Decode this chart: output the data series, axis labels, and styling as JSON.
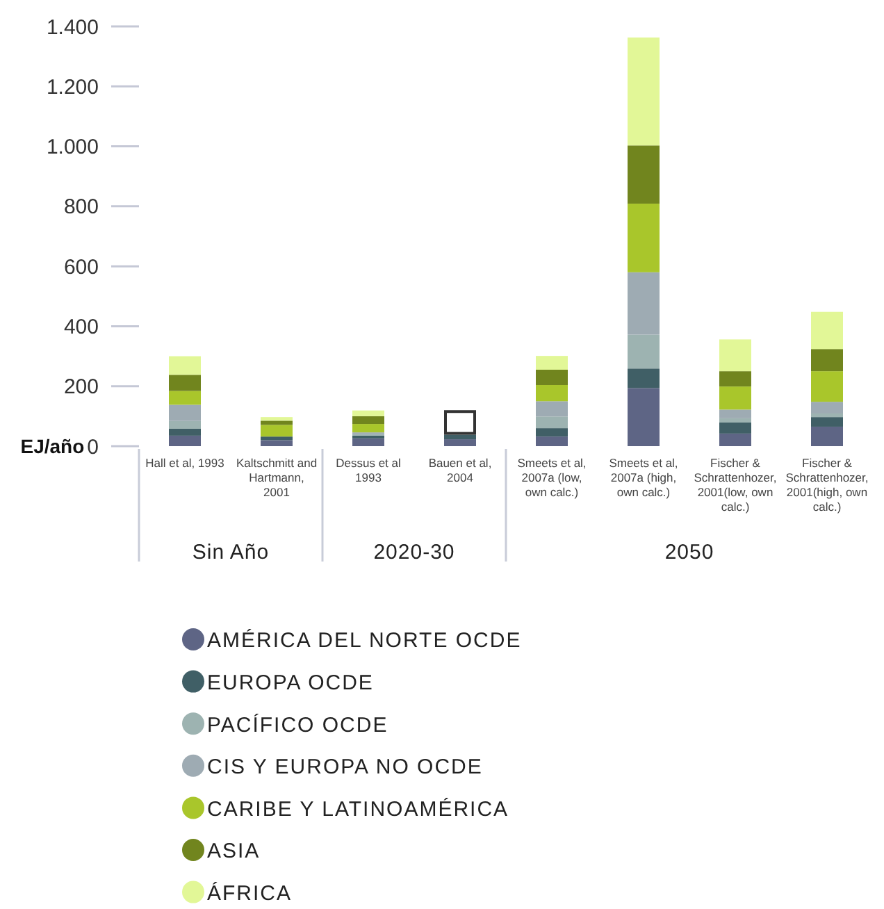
{
  "chart_data": {
    "type": "bar",
    "stacked": true,
    "ylabel": "EJ/año",
    "categories": [
      "Hall et al, 1993",
      "Kaltschmitt and Hartmann, 2001",
      "Dessus et al 1993",
      "Bauen et al, 2004",
      "Smeets et al, 2007a (low, own calc.)",
      "Smeets et al, 2007a (high, own calc.)",
      "Fischer & Schrattenhozer, 2001(low, own calc.)",
      "Fischer & Schrattenhozer, 2001(high, own calc.)"
    ],
    "series": [
      {
        "name": "AMÉRICA DEL NORTE OCDE",
        "color": "#5e6585",
        "values": [
          35,
          20,
          26,
          23,
          32,
          194,
          42,
          65
        ]
      },
      {
        "name": "EUROPA OCDE",
        "color": "#405f66",
        "values": [
          23,
          12,
          9,
          15,
          28,
          65,
          37,
          32
        ]
      },
      {
        "name": "PACÍFICO OCDE",
        "color": "#9db3b1",
        "values": [
          26,
          0,
          5,
          0,
          39,
          113,
          14,
          12
        ]
      },
      {
        "name": "CIS Y EUROPA NO OCDE",
        "color": "#9eabb3",
        "values": [
          54,
          0,
          6,
          0,
          51,
          208,
          29,
          39
        ]
      },
      {
        "name": "CARIBE Y LATINOAMÉRICA",
        "color": "#a9c62b",
        "values": [
          46,
          39,
          28,
          0,
          54,
          229,
          77,
          102
        ]
      },
      {
        "name": "ASIA",
        "color": "#71851e",
        "values": [
          54,
          14,
          26,
          0,
          51,
          194,
          51,
          74
        ]
      },
      {
        "name": "ÁFRICA",
        "color": "#e2f797",
        "values": [
          62,
          12,
          19,
          0,
          46,
          360,
          106,
          124
        ]
      },
      {
        "color": "#ffffff",
        "values": [
          0,
          0,
          0,
          82,
          0,
          0,
          0,
          0
        ]
      }
    ],
    "ylim": [
      0,
      1400
    ],
    "yticks": [
      0,
      {
        "value": 200,
        "label": "200"
      },
      {
        "value": 400,
        "label": "400"
      },
      {
        "value": 600,
        "label": "600"
      },
      {
        "value": 800,
        "label": "800"
      },
      {
        "value": 1000,
        "label": "1.000"
      },
      {
        "value": 1200,
        "label": "1.200"
      },
      {
        "value": 1400,
        "label": "1.400"
      }
    ],
    "annotations": [
      "Sin Año",
      "2020-30",
      "2050"
    ],
    "legend": "bottom",
    "marker": "circle",
    "grid": false
  }
}
